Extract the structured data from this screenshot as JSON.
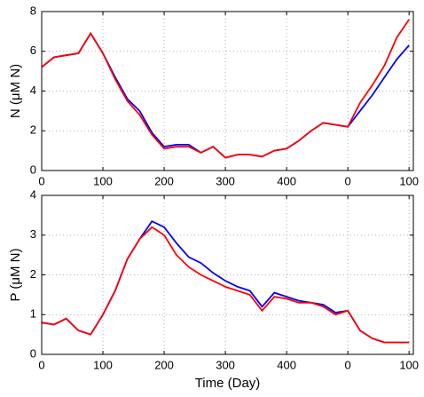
{
  "chart_data": [
    {
      "type": "line",
      "y_label": "N (μM N)",
      "x": [
        0,
        20,
        40,
        60,
        80,
        100,
        120,
        140,
        160,
        180,
        200,
        220,
        240,
        260,
        280,
        300,
        320,
        340,
        360,
        380,
        400,
        420,
        440,
        460,
        480,
        500,
        520,
        540,
        560,
        580,
        600
      ],
      "xlim": [
        0,
        607
      ],
      "xticks": [
        0,
        100,
        200,
        300,
        400,
        {
          "value": 500,
          "label": "0"
        },
        {
          "value": 600,
          "label": "100"
        }
      ],
      "ylim": [
        0,
        8
      ],
      "yticks": [
        0,
        2,
        4,
        6,
        8
      ],
      "grid": true,
      "series": [
        {
          "color": "#0000ff",
          "values": [
            5.2,
            5.7,
            5.8,
            5.9,
            6.9,
            5.9,
            4.7,
            3.6,
            3.0,
            1.9,
            1.2,
            1.3,
            1.3,
            0.9,
            1.2,
            0.65,
            0.8,
            0.8,
            0.7,
            1.0,
            1.1,
            1.5,
            2.0,
            2.4,
            2.3,
            2.2,
            3.0,
            3.8,
            4.7,
            5.6,
            6.3
          ]
        },
        {
          "color": "#ff0000",
          "values": [
            5.2,
            5.7,
            5.8,
            5.9,
            6.9,
            5.9,
            4.6,
            3.5,
            2.8,
            1.8,
            1.1,
            1.2,
            1.2,
            0.9,
            1.2,
            0.65,
            0.8,
            0.8,
            0.7,
            1.0,
            1.1,
            1.5,
            2.0,
            2.4,
            2.3,
            2.2,
            3.4,
            4.3,
            5.3,
            6.7,
            7.6
          ]
        }
      ]
    },
    {
      "type": "line",
      "y_label": "P (μM N)",
      "x_label": "Time (Day)",
      "x": [
        0,
        20,
        40,
        60,
        80,
        100,
        120,
        140,
        160,
        180,
        200,
        220,
        240,
        260,
        280,
        300,
        320,
        340,
        360,
        380,
        400,
        420,
        440,
        460,
        480,
        500,
        520,
        540,
        560,
        580,
        600
      ],
      "xlim": [
        0,
        607
      ],
      "xticks": [
        0,
        100,
        200,
        300,
        400,
        {
          "value": 500,
          "label": "0"
        },
        {
          "value": 600,
          "label": "100"
        }
      ],
      "ylim": [
        0,
        4
      ],
      "yticks": [
        0,
        1,
        2,
        3,
        4
      ],
      "grid": true,
      "series": [
        {
          "color": "#0000ff",
          "values": [
            0.8,
            0.75,
            0.9,
            0.6,
            0.5,
            1.0,
            1.6,
            2.4,
            2.9,
            3.35,
            3.2,
            2.8,
            2.45,
            2.3,
            2.05,
            1.85,
            1.7,
            1.6,
            1.2,
            1.55,
            1.45,
            1.35,
            1.3,
            1.25,
            1.05,
            1.1,
            0.6,
            0.4,
            0.3,
            0.3,
            0.3
          ]
        },
        {
          "color": "#ff0000",
          "values": [
            0.8,
            0.75,
            0.9,
            0.6,
            0.5,
            1.0,
            1.6,
            2.4,
            2.9,
            3.2,
            3.0,
            2.5,
            2.2,
            2.0,
            1.85,
            1.7,
            1.6,
            1.5,
            1.1,
            1.45,
            1.4,
            1.3,
            1.3,
            1.2,
            1.0,
            1.1,
            0.6,
            0.4,
            0.3,
            0.3,
            0.3
          ]
        }
      ]
    }
  ]
}
